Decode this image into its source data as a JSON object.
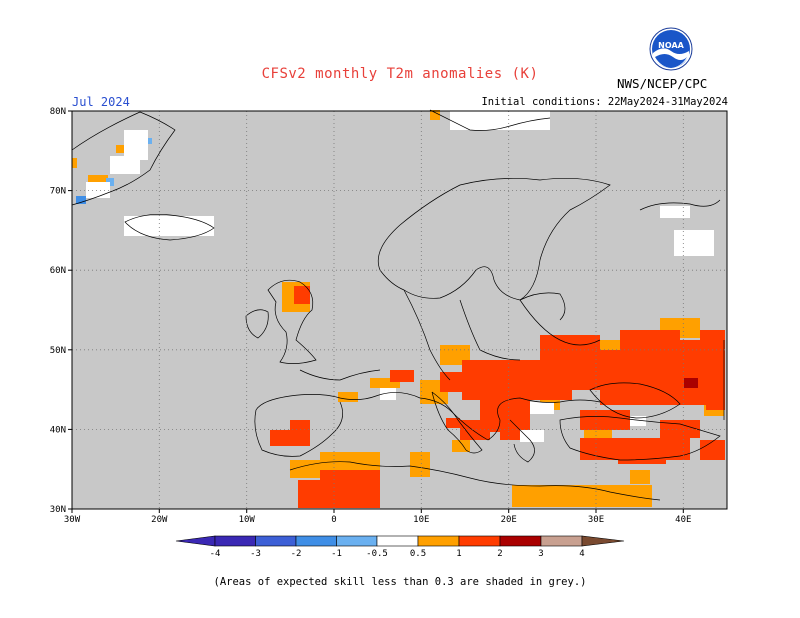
{
  "title": "CFSv2 monthly T2m anomalies (K)",
  "agency": "NWS/NCEP/CPC",
  "logo_text": "NOAA",
  "month_label": "Jul 2024",
  "initial_conditions": "Initial conditions: 22May2024-31May2024",
  "footnote": "(Areas of expected skill less than 0.3 are shaded in grey.)",
  "map": {
    "lon_range": [
      -30,
      45
    ],
    "lat_range": [
      30,
      80
    ],
    "lon_ticks": [
      "30W",
      "20W",
      "10W",
      "0",
      "10E",
      "20E",
      "30E",
      "40E"
    ],
    "lat_ticks": [
      "80N",
      "70N",
      "60N",
      "50N",
      "40N",
      "30N"
    ],
    "background_color": "#c8c8c8",
    "grid": "dotted"
  },
  "colorbar": {
    "labels": [
      "-4",
      "-3",
      "-2",
      "-1",
      "-0.5",
      "0.5",
      "1",
      "2",
      "3",
      "4"
    ],
    "colors": [
      "#3a28b4",
      "#3c5fd6",
      "#3f8ee6",
      "#6ab0f0",
      "#ffffff",
      "#ffa000",
      "#ff3c00",
      "#aa0000",
      "#c8a090",
      "#7a4a30"
    ]
  }
}
